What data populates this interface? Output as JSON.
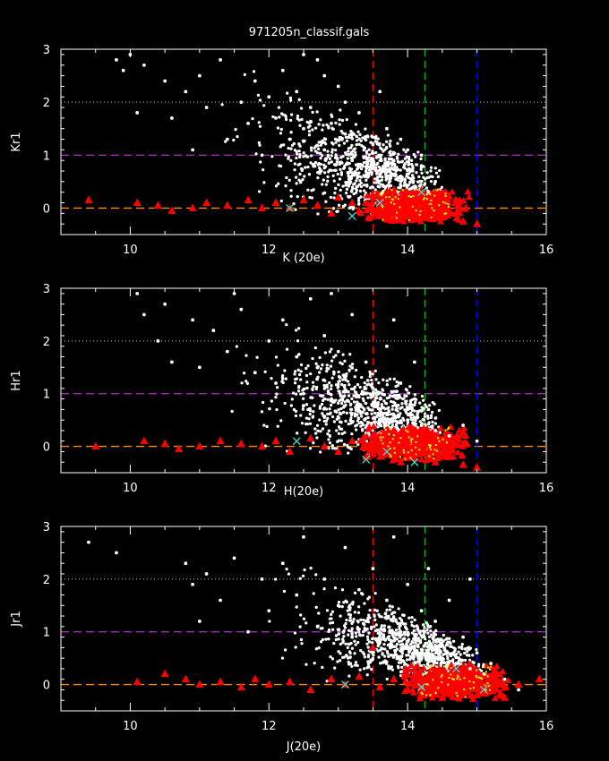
{
  "title": "971205n_classif.gals",
  "colors": {
    "galaxy": "#ffffff",
    "star": "#ff0000",
    "cross": "#40e0d0",
    "minor": "#ffff00",
    "line_purple": "#b030c8",
    "line_orange": "#ff8c00",
    "line_gray": "#a0a0a0",
    "vline_red": "#ff0000",
    "vline_green": "#00c000",
    "vline_blue": "#0000ff"
  },
  "chart_data": [
    {
      "type": "scatter",
      "ylabel": "Kr1",
      "xlabel": "K (20e)",
      "xlim": [
        9,
        16
      ],
      "ylim": [
        -0.5,
        3
      ],
      "xticks": [
        "10",
        "12",
        "14",
        "16"
      ],
      "yticks": [
        "0",
        "1",
        "2",
        "3"
      ],
      "hlines": [
        {
          "y": 2,
          "style": "dotted",
          "color": "gray"
        },
        {
          "y": 1,
          "style": "dashed",
          "color": "purple"
        },
        {
          "y": 0,
          "style": "dashed",
          "color": "orange"
        }
      ],
      "vlines": [
        {
          "x": 13.5,
          "color": "red"
        },
        {
          "x": 14.25,
          "color": "green"
        },
        {
          "x": 15.0,
          "color": "blue"
        }
      ],
      "series": [
        {
          "marker": "dot",
          "color": "white",
          "values": [
            [
              9.8,
              2.8
            ],
            [
              9.9,
              2.6
            ],
            [
              10.0,
              2.9
            ],
            [
              10.1,
              1.8
            ],
            [
              10.2,
              2.7
            ],
            [
              10.5,
              2.4
            ],
            [
              10.6,
              1.7
            ],
            [
              10.8,
              2.2
            ],
            [
              10.9,
              1.1
            ],
            [
              11.0,
              2.5
            ],
            [
              11.1,
              1.9
            ],
            [
              11.3,
              2.8
            ],
            [
              11.4,
              1.3
            ],
            [
              11.6,
              2.0
            ],
            [
              11.7,
              1.6
            ],
            [
              11.8,
              2.4
            ],
            [
              11.9,
              1.0
            ],
            [
              12.0,
              2.1
            ],
            [
              12.1,
              1.7
            ],
            [
              12.2,
              2.6
            ],
            [
              12.3,
              1.3
            ],
            [
              12.4,
              2.2
            ],
            [
              12.5,
              1.5
            ],
            [
              12.6,
              1.9
            ],
            [
              12.7,
              2.8
            ],
            [
              12.8,
              1.1
            ],
            [
              12.9,
              1.6
            ],
            [
              13.0,
              2.3
            ],
            [
              13.1,
              1.4
            ],
            [
              13.2,
              0.9
            ],
            [
              13.3,
              1.8
            ],
            [
              13.4,
              0.7
            ],
            [
              13.5,
              1.2
            ],
            [
              13.6,
              0.6
            ],
            [
              13.7,
              1.5
            ],
            [
              13.8,
              0.9
            ],
            [
              13.9,
              0.5
            ],
            [
              14.0,
              1.1
            ],
            [
              14.1,
              0.4
            ],
            [
              14.2,
              0.8
            ],
            [
              14.3,
              0.3
            ],
            [
              14.4,
              0.5
            ],
            [
              12.5,
              2.9
            ],
            [
              12.8,
              2.5
            ],
            [
              13.1,
              2.0
            ],
            [
              13.6,
              2.2
            ],
            [
              13.9,
              1.3
            ],
            [
              14.2,
              1.0
            ]
          ]
        },
        {
          "marker": "triangle",
          "color": "red",
          "values": [
            [
              9.4,
              0.15
            ],
            [
              10.1,
              0.1
            ],
            [
              10.4,
              0.05
            ],
            [
              10.6,
              -0.05
            ],
            [
              10.9,
              0.0
            ],
            [
              11.1,
              0.1
            ],
            [
              11.4,
              0.05
            ],
            [
              11.7,
              0.15
            ],
            [
              11.9,
              0.0
            ],
            [
              12.1,
              0.1
            ],
            [
              12.3,
              0.0
            ],
            [
              12.5,
              0.15
            ],
            [
              12.7,
              0.05
            ],
            [
              12.9,
              -0.1
            ],
            [
              13.0,
              0.2
            ],
            [
              13.2,
              0.1
            ],
            [
              13.3,
              -0.05
            ],
            [
              13.5,
              0.25
            ],
            [
              13.6,
              0.0
            ],
            [
              13.7,
              0.3
            ],
            [
              13.8,
              -0.1
            ],
            [
              13.9,
              0.15
            ],
            [
              14.0,
              0.05
            ],
            [
              14.1,
              -0.2
            ],
            [
              14.2,
              0.1
            ],
            [
              14.3,
              0.0
            ],
            [
              14.4,
              -0.15
            ],
            [
              14.6,
              -0.1
            ],
            [
              14.8,
              -0.25
            ],
            [
              15.0,
              -0.3
            ]
          ]
        },
        {
          "marker": "x",
          "color": "cyan",
          "values": [
            [
              12.3,
              0.0
            ],
            [
              13.2,
              -0.15
            ],
            [
              13.6,
              0.1
            ],
            [
              14.2,
              0.3
            ]
          ]
        }
      ]
    },
    {
      "type": "scatter",
      "ylabel": "Hr1",
      "xlabel": "H(20e)",
      "xlim": [
        9,
        16
      ],
      "ylim": [
        -0.5,
        3
      ],
      "xticks": [
        "10",
        "12",
        "14",
        "16"
      ],
      "yticks": [
        "0",
        "1",
        "2",
        "3"
      ],
      "hlines": [
        {
          "y": 2,
          "style": "dotted",
          "color": "gray"
        },
        {
          "y": 1,
          "style": "dashed",
          "color": "purple"
        },
        {
          "y": 0,
          "style": "dashed",
          "color": "orange"
        }
      ],
      "vlines": [
        {
          "x": 13.5,
          "color": "red"
        },
        {
          "x": 14.25,
          "color": "green"
        },
        {
          "x": 15.0,
          "color": "blue"
        }
      ],
      "series": [
        {
          "marker": "dot",
          "color": "white",
          "values": [
            [
              10.1,
              2.9
            ],
            [
              10.2,
              2.5
            ],
            [
              10.4,
              2.0
            ],
            [
              10.5,
              2.7
            ],
            [
              10.6,
              1.6
            ],
            [
              10.9,
              2.4
            ],
            [
              11.0,
              1.5
            ],
            [
              11.2,
              2.2
            ],
            [
              11.4,
              1.8
            ],
            [
              11.6,
              2.6
            ],
            [
              11.8,
              1.4
            ],
            [
              12.0,
              2.0
            ],
            [
              12.1,
              1.2
            ],
            [
              12.2,
              2.4
            ],
            [
              12.4,
              1.7
            ],
            [
              12.5,
              1.0
            ],
            [
              12.6,
              2.8
            ],
            [
              12.7,
              1.5
            ],
            [
              12.8,
              2.1
            ],
            [
              12.9,
              0.9
            ],
            [
              13.0,
              1.8
            ],
            [
              13.1,
              1.3
            ],
            [
              13.2,
              2.5
            ],
            [
              13.3,
              0.8
            ],
            [
              13.4,
              1.6
            ],
            [
              13.5,
              1.1
            ],
            [
              13.6,
              0.7
            ],
            [
              13.7,
              1.9
            ],
            [
              13.8,
              0.6
            ],
            [
              13.9,
              1.2
            ],
            [
              14.0,
              0.5
            ],
            [
              14.1,
              0.9
            ],
            [
              14.2,
              0.4
            ],
            [
              14.3,
              0.7
            ],
            [
              14.4,
              0.3
            ],
            [
              14.6,
              0.2
            ],
            [
              14.8,
              0.4
            ],
            [
              15.0,
              0.1
            ],
            [
              11.5,
              2.9
            ],
            [
              12.9,
              2.9
            ],
            [
              13.8,
              2.4
            ],
            [
              14.1,
              1.6
            ]
          ]
        },
        {
          "marker": "triangle",
          "color": "red",
          "values": [
            [
              9.5,
              0.0
            ],
            [
              10.2,
              0.1
            ],
            [
              10.5,
              0.05
            ],
            [
              10.7,
              -0.05
            ],
            [
              11.0,
              0.0
            ],
            [
              11.3,
              0.1
            ],
            [
              11.6,
              0.05
            ],
            [
              11.9,
              0.0
            ],
            [
              12.1,
              0.1
            ],
            [
              12.3,
              -0.1
            ],
            [
              12.6,
              0.15
            ],
            [
              12.8,
              0.0
            ],
            [
              13.0,
              -0.1
            ],
            [
              13.2,
              0.1
            ],
            [
              13.4,
              -0.2
            ],
            [
              13.6,
              0.0
            ],
            [
              13.8,
              0.3
            ],
            [
              13.9,
              -0.3
            ],
            [
              14.0,
              0.1
            ],
            [
              14.1,
              -0.2
            ],
            [
              14.2,
              0.2
            ],
            [
              14.3,
              -0.1
            ],
            [
              14.4,
              -0.3
            ],
            [
              14.6,
              -0.2
            ],
            [
              14.8,
              -0.35
            ],
            [
              15.0,
              -0.4
            ]
          ]
        },
        {
          "marker": "x",
          "color": "cyan",
          "values": [
            [
              12.4,
              0.1
            ],
            [
              13.4,
              -0.25
            ],
            [
              13.7,
              -0.1
            ],
            [
              14.1,
              -0.3
            ]
          ]
        }
      ]
    },
    {
      "type": "scatter",
      "ylabel": "Jr1",
      "xlabel": "J(20e)",
      "xlim": [
        9,
        16
      ],
      "ylim": [
        -0.5,
        3
      ],
      "xticks": [
        "10",
        "12",
        "14",
        "16"
      ],
      "yticks": [
        "0",
        "1",
        "2",
        "3"
      ],
      "hlines": [
        {
          "y": 2,
          "style": "dotted",
          "color": "gray"
        },
        {
          "y": 1,
          "style": "dashed",
          "color": "purple"
        },
        {
          "y": 0,
          "style": "dashed",
          "color": "orange"
        }
      ],
      "vlines": [
        {
          "x": 13.5,
          "color": "red"
        },
        {
          "x": 14.25,
          "color": "green"
        },
        {
          "x": 15.0,
          "color": "blue"
        }
      ],
      "series": [
        {
          "marker": "dot",
          "color": "white",
          "values": [
            [
              9.4,
              2.7
            ],
            [
              9.8,
              2.5
            ],
            [
              10.8,
              2.3
            ],
            [
              10.9,
              1.9
            ],
            [
              11.0,
              1.2
            ],
            [
              11.1,
              2.1
            ],
            [
              11.3,
              1.6
            ],
            [
              11.5,
              2.4
            ],
            [
              11.7,
              1.0
            ],
            [
              11.9,
              2.0
            ],
            [
              12.0,
              1.4
            ],
            [
              12.2,
              2.3
            ],
            [
              12.4,
              1.7
            ],
            [
              12.5,
              2.8
            ],
            [
              12.7,
              1.1
            ],
            [
              12.8,
              2.0
            ],
            [
              13.0,
              1.5
            ],
            [
              13.1,
              2.6
            ],
            [
              13.2,
              0.9
            ],
            [
              13.3,
              1.8
            ],
            [
              13.4,
              1.2
            ],
            [
              13.5,
              2.2
            ],
            [
              13.6,
              0.8
            ],
            [
              13.7,
              1.6
            ],
            [
              13.8,
              2.8
            ],
            [
              13.9,
              1.0
            ],
            [
              14.0,
              1.9
            ],
            [
              14.1,
              0.7
            ],
            [
              14.2,
              1.4
            ],
            [
              14.3,
              0.6
            ],
            [
              14.4,
              1.2
            ],
            [
              14.5,
              0.5
            ],
            [
              14.6,
              1.6
            ],
            [
              14.7,
              0.4
            ],
            [
              14.8,
              0.9
            ],
            [
              14.9,
              0.3
            ],
            [
              15.0,
              0.6
            ],
            [
              15.1,
              0.2
            ],
            [
              15.2,
              0.4
            ],
            [
              15.4,
              0.1
            ],
            [
              15.6,
              -0.1
            ],
            [
              14.3,
              2.2
            ],
            [
              14.9,
              2.0
            ]
          ]
        },
        {
          "marker": "triangle",
          "color": "red",
          "values": [
            [
              10.1,
              0.05
            ],
            [
              10.5,
              0.2
            ],
            [
              10.8,
              0.1
            ],
            [
              11.0,
              0.0
            ],
            [
              11.3,
              0.05
            ],
            [
              11.6,
              -0.05
            ],
            [
              11.8,
              0.1
            ],
            [
              12.0,
              0.0
            ],
            [
              12.3,
              0.05
            ],
            [
              12.6,
              -0.1
            ],
            [
              12.9,
              0.1
            ],
            [
              13.1,
              0.0
            ],
            [
              13.3,
              0.15
            ],
            [
              13.5,
              0.7
            ],
            [
              13.6,
              -0.05
            ],
            [
              13.8,
              0.1
            ],
            [
              14.0,
              -0.1
            ],
            [
              14.2,
              0.05
            ],
            [
              14.4,
              0.2
            ],
            [
              14.6,
              -0.1
            ],
            [
              14.8,
              0.0
            ],
            [
              15.0,
              -0.2
            ],
            [
              15.2,
              0.1
            ],
            [
              15.4,
              -0.25
            ],
            [
              15.6,
              0.0
            ],
            [
              15.9,
              0.1
            ]
          ]
        },
        {
          "marker": "x",
          "color": "cyan",
          "values": [
            [
              13.1,
              0.0
            ],
            [
              14.2,
              -0.05
            ],
            [
              14.7,
              0.3
            ],
            [
              15.1,
              -0.1
            ]
          ]
        }
      ]
    }
  ]
}
